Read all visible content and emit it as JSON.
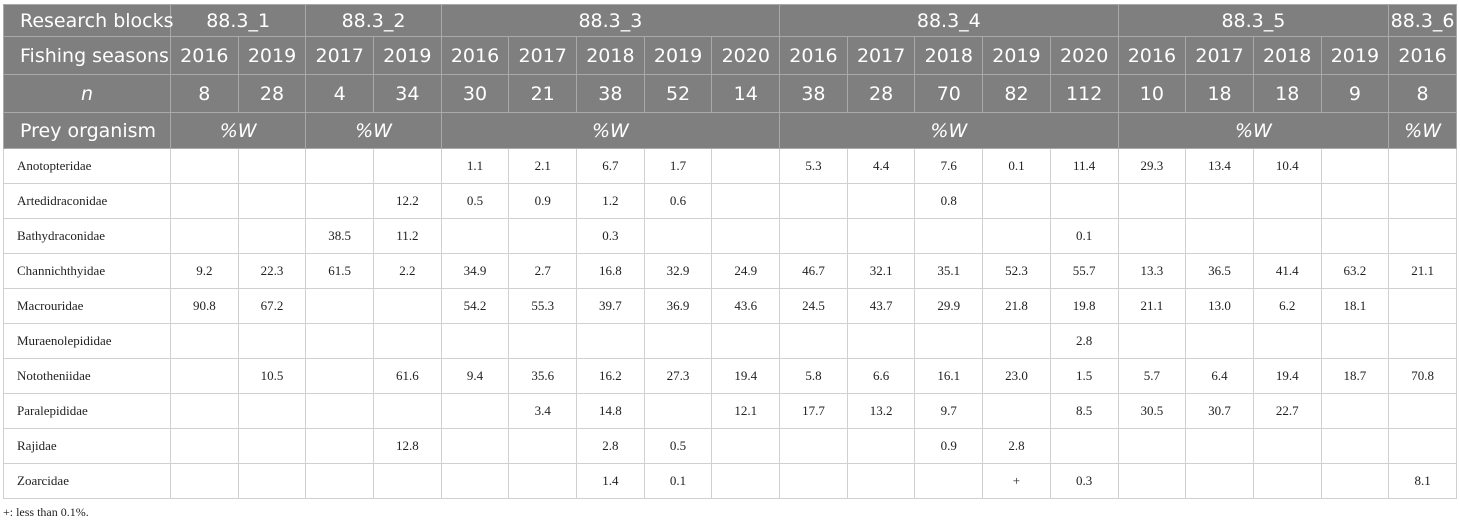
{
  "header": {
    "blocks_label": "Research blocks",
    "seasons_label": "Fishing seasons",
    "n_label": "n",
    "prey_label": "Prey organism",
    "metric_label": "%W",
    "blocks": [
      {
        "name": "88.3_1",
        "seasons": [
          "2016",
          "2019"
        ],
        "n": [
          "8",
          "28"
        ]
      },
      {
        "name": "88.3_2",
        "seasons": [
          "2017",
          "2019"
        ],
        "n": [
          "4",
          "34"
        ]
      },
      {
        "name": "88.3_3",
        "seasons": [
          "2016",
          "2017",
          "2018",
          "2019",
          "2020"
        ],
        "n": [
          "30",
          "21",
          "38",
          "52",
          "14"
        ]
      },
      {
        "name": "88.3_4",
        "seasons": [
          "2016",
          "2017",
          "2018",
          "2019",
          "2020"
        ],
        "n": [
          "38",
          "28",
          "70",
          "82",
          "112"
        ]
      },
      {
        "name": "88.3_5",
        "seasons": [
          "2016",
          "2017",
          "2018",
          "2019"
        ],
        "n": [
          "10",
          "18",
          "18",
          "9"
        ]
      },
      {
        "name": "88.3_6",
        "seasons": [
          "2016"
        ],
        "n": [
          "8"
        ]
      }
    ]
  },
  "rows": [
    {
      "label": "Anotopteridae",
      "values": [
        "",
        "",
        "",
        "",
        "1.1",
        "2.1",
        "6.7",
        "1.7",
        "",
        "5.3",
        "4.4",
        "7.6",
        "0.1",
        "11.4",
        "29.3",
        "13.4",
        "10.4",
        "",
        ""
      ]
    },
    {
      "label": "Artedidraconidae",
      "values": [
        "",
        "",
        "",
        "12.2",
        "0.5",
        "0.9",
        "1.2",
        "0.6",
        "",
        "",
        "",
        "0.8",
        "",
        "",
        "",
        "",
        "",
        "",
        ""
      ]
    },
    {
      "label": "Bathydraconidae",
      "values": [
        "",
        "",
        "38.5",
        "11.2",
        "",
        "",
        "0.3",
        "",
        "",
        "",
        "",
        "",
        "",
        "0.1",
        "",
        "",
        "",
        "",
        ""
      ]
    },
    {
      "label": "Channichthyidae",
      "values": [
        "9.2",
        "22.3",
        "61.5",
        "2.2",
        "34.9",
        "2.7",
        "16.8",
        "32.9",
        "24.9",
        "46.7",
        "32.1",
        "35.1",
        "52.3",
        "55.7",
        "13.3",
        "36.5",
        "41.4",
        "63.2",
        "21.1"
      ]
    },
    {
      "label": "Macrouridae",
      "values": [
        "90.8",
        "67.2",
        "",
        "",
        "54.2",
        "55.3",
        "39.7",
        "36.9",
        "43.6",
        "24.5",
        "43.7",
        "29.9",
        "21.8",
        "19.8",
        "21.1",
        "13.0",
        "6.2",
        "18.1",
        ""
      ]
    },
    {
      "label": "Muraenolepididae",
      "values": [
        "",
        "",
        "",
        "",
        "",
        "",
        "",
        "",
        "",
        "",
        "",
        "",
        "",
        "2.8",
        "",
        "",
        "",
        "",
        ""
      ]
    },
    {
      "label": "Nototheniidae",
      "values": [
        "",
        "10.5",
        "",
        "61.6",
        "9.4",
        "35.6",
        "16.2",
        "27.3",
        "19.4",
        "5.8",
        "6.6",
        "16.1",
        "23.0",
        "1.5",
        "5.7",
        "6.4",
        "19.4",
        "18.7",
        "70.8"
      ]
    },
    {
      "label": "Paralepididae",
      "values": [
        "",
        "",
        "",
        "",
        "",
        "3.4",
        "14.8",
        "",
        "12.1",
        "17.7",
        "13.2",
        "9.7",
        "",
        "8.5",
        "30.5",
        "30.7",
        "22.7",
        "",
        ""
      ]
    },
    {
      "label": "Rajidae",
      "values": [
        "",
        "",
        "",
        "12.8",
        "",
        "",
        "2.8",
        "0.5",
        "",
        "",
        "",
        "0.9",
        "2.8",
        "",
        "",
        "",
        "",
        "",
        ""
      ]
    },
    {
      "label": "Zoarcidae",
      "values": [
        "",
        "",
        "",
        "",
        "",
        "",
        "1.4",
        "0.1",
        "",
        "",
        "",
        "",
        "+",
        "0.3",
        "",
        "",
        "",
        "",
        "8.1"
      ]
    }
  ],
  "footnote": "+: less than 0.1%."
}
